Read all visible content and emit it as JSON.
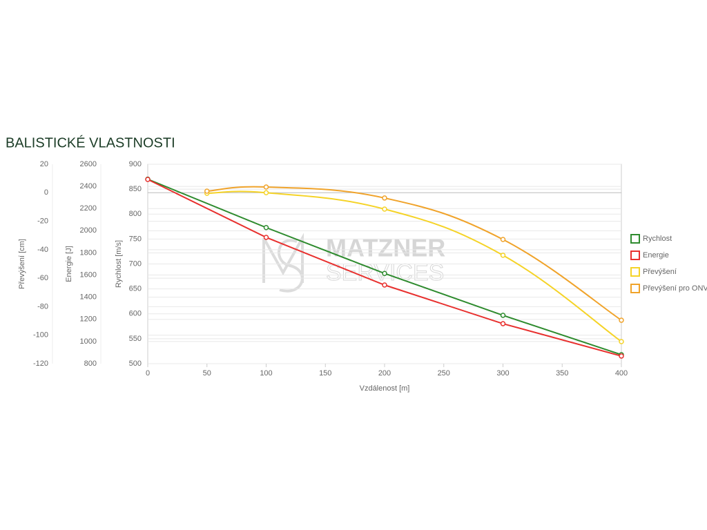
{
  "chart_data": {
    "type": "line",
    "title": "BALISTICKÉ VLASTNOSTI",
    "watermark": [
      "MATZNER",
      "SERVICES"
    ],
    "x_label": "Vzdálenost [m]",
    "xlim": [
      0,
      400
    ],
    "xticks": [
      0,
      50,
      100,
      150,
      200,
      250,
      300,
      350,
      400
    ],
    "y_label": "Rychlost [m/s]",
    "ylim": [
      500,
      900
    ],
    "yticks": [
      500,
      550,
      600,
      650,
      700,
      750,
      800,
      850,
      900
    ],
    "y2_label": "Energie [J]",
    "y2lim": [
      800,
      2600
    ],
    "y2ticks": [
      800,
      1000,
      1200,
      1400,
      1600,
      1800,
      2000,
      2200,
      2400,
      2600
    ],
    "y3_label": "Převýšení [cm]",
    "y3lim": [
      -120,
      20
    ],
    "y3ticks": [
      -120,
      -100,
      -80,
      -60,
      -40,
      -20,
      0,
      20
    ],
    "grid": true,
    "series": [
      {
        "name": "Rychlost",
        "color": "#2e8b2e",
        "axis": "y",
        "smooth": false,
        "x": [
          0,
          100,
          200,
          300,
          400
        ],
        "values": [
          870,
          773,
          681,
          597,
          518
        ]
      },
      {
        "name": "Energie",
        "color": "#e8302e",
        "axis": "y2",
        "smooth": false,
        "x": [
          0,
          100,
          200,
          300,
          400
        ],
        "values": [
          2463,
          1940,
          1510,
          1161,
          869
        ]
      },
      {
        "name": "Převýšení",
        "color": "#f5d327",
        "axis": "y3",
        "smooth": true,
        "x": [
          50,
          100,
          200,
          300,
          400
        ],
        "values": [
          -0.4,
          0,
          -11.5,
          -43.9,
          -104.5
        ]
      },
      {
        "name": "Převýšení pro ONV",
        "color": "#f0a32a",
        "axis": "y3",
        "smooth": true,
        "x": [
          50,
          100,
          200,
          300,
          400
        ],
        "values": [
          1.1,
          4.0,
          -3.7,
          -32.8,
          -89.5
        ]
      }
    ]
  }
}
